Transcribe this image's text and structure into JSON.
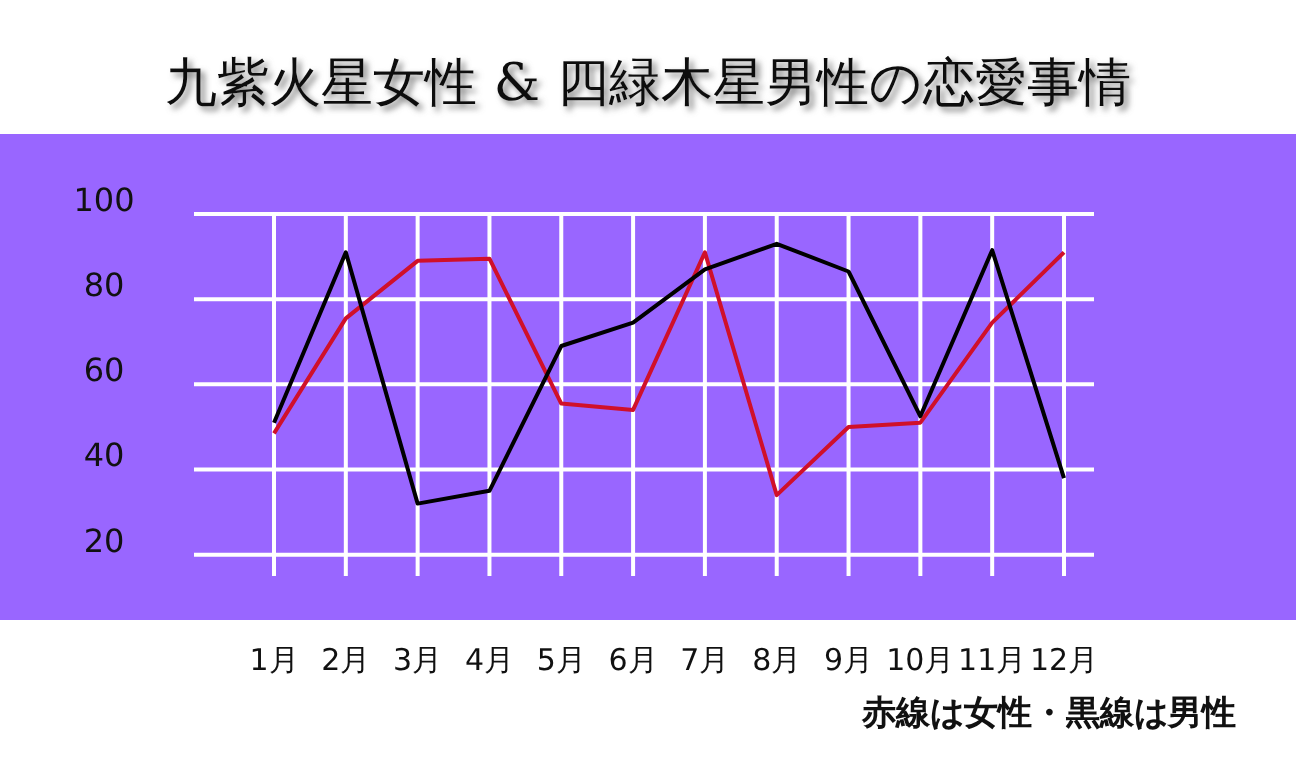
{
  "chart_data": {
    "type": "line",
    "title": "九紫火星女性 & 四緑木星男性の恋愛事情",
    "categories": [
      "1月",
      "2月",
      "3月",
      "4月",
      "5月",
      "6月",
      "7月",
      "8月",
      "9月",
      "10月",
      "11月",
      "12月"
    ],
    "series": [
      {
        "color": "#d0102a",
        "values": [
          48.5,
          75.5,
          89,
          89.5,
          55.5,
          54,
          91,
          34,
          50,
          51,
          74.5,
          91
        ]
      },
      {
        "color": "#000000",
        "values": [
          51,
          91,
          32,
          35,
          69,
          74.5,
          87,
          93,
          86.5,
          52.5,
          91.5,
          38
        ]
      }
    ],
    "ylim": [
      15,
      100
    ],
    "yticks": [
      20,
      40,
      60,
      80,
      100
    ],
    "grid": true,
    "marker": "none",
    "line_style": "solid",
    "annotations": [
      "赤線は女性・黒線は男性"
    ]
  }
}
